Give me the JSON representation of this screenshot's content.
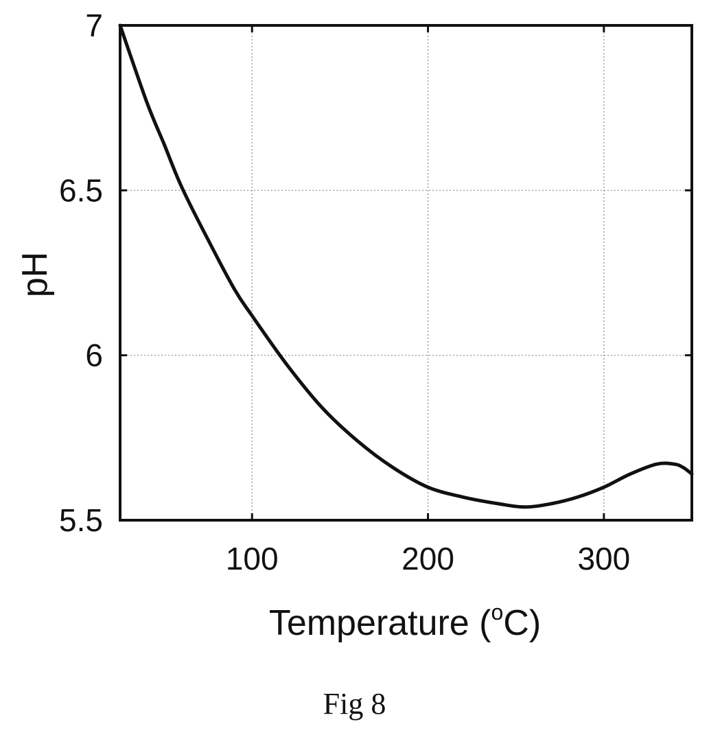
{
  "figure": {
    "caption": "Fig 8"
  },
  "chart_data": {
    "type": "line",
    "xlabel": "Temperature",
    "xlabel_unit_open": " (",
    "xlabel_unit_degree": "o",
    "xlabel_unit_rest": "C)",
    "ylabel": "pH",
    "xlim": [
      25,
      350
    ],
    "ylim": [
      5.5,
      7
    ],
    "xticks": [
      100,
      200,
      300
    ],
    "yticks": [
      5.5,
      6,
      6.5,
      7
    ],
    "xtick_labels": [
      "100",
      "200",
      "300"
    ],
    "ytick_labels": [
      "5.5",
      "6",
      "6.5",
      "7"
    ],
    "grid": true,
    "series_color": "#111111",
    "series": [
      {
        "x": [
          25,
          40,
          50,
          60,
          75,
          90,
          100,
          120,
          140,
          160,
          180,
          200,
          220,
          240,
          255,
          270,
          285,
          300,
          315,
          330,
          340,
          345,
          350
        ],
        "y": [
          7.0,
          6.77,
          6.64,
          6.51,
          6.35,
          6.2,
          6.12,
          5.97,
          5.84,
          5.74,
          5.66,
          5.6,
          5.57,
          5.55,
          5.54,
          5.55,
          5.57,
          5.6,
          5.64,
          5.67,
          5.67,
          5.66,
          5.64
        ]
      }
    ]
  }
}
